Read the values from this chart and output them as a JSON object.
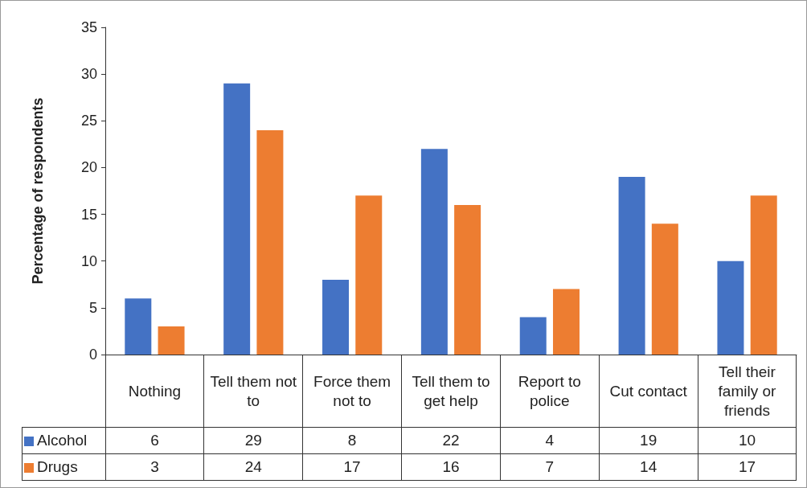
{
  "chart_data": {
    "type": "bar",
    "ylabel": "Percentage of respondents",
    "categories": [
      "Nothing",
      "Tell them not to",
      "Force them not to",
      "Tell them to get help",
      "Report to police",
      "Cut contact",
      "Tell their family or friends"
    ],
    "series": [
      {
        "name": "Alcohol",
        "color": "#4472c4",
        "values": [
          6,
          29,
          8,
          22,
          4,
          19,
          10
        ]
      },
      {
        "name": "Drugs",
        "color": "#ed7d31",
        "values": [
          3,
          24,
          17,
          16,
          7,
          14,
          17
        ]
      }
    ],
    "ylim": [
      0,
      35
    ],
    "yticks": [
      0,
      5,
      10,
      15,
      20,
      25,
      30,
      35
    ],
    "grid": false,
    "legend": "bottom",
    "data_labels": true
  }
}
